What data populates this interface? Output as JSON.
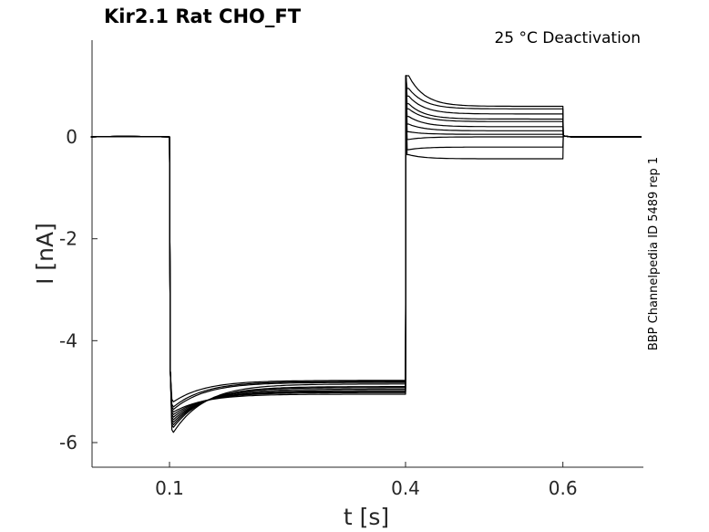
{
  "chart_data": {
    "type": "line",
    "title": "Kir2.1  Rat  CHO_FT",
    "subtitle": "25 °C  Deactivation",
    "xlabel": "t [s]",
    "ylabel": "I [nA]",
    "side_label": "BBP Channelpedia ID 5489 rep 1",
    "xlim": [
      0,
      0.7
    ],
    "ylim": [
      -6.45,
      1.9
    ],
    "xticks": [
      0.1,
      0.4,
      0.6
    ],
    "xtick_labels": [
      "0.1",
      "0.4",
      "0.6"
    ],
    "yticks": [
      0,
      -2,
      -4,
      -6
    ],
    "ytick_labels": [
      "0",
      "-2",
      "-4",
      "-6"
    ],
    "grid": false,
    "legend": "none",
    "protocol_times_s": [
      0.1,
      0.4,
      0.6
    ],
    "series_summary": [
      {
        "peak_step1": -5.8,
        "steady_step1": -4.85,
        "peak_step2": 1.2,
        "steady_step2": 0.6
      },
      {
        "peak_step1": -5.7,
        "steady_step1": -4.9,
        "peak_step2": 0.95,
        "steady_step2": 0.55
      },
      {
        "peak_step1": -5.65,
        "steady_step1": -4.92,
        "peak_step2": 0.8,
        "steady_step2": 0.45
      },
      {
        "peak_step1": -5.6,
        "steady_step1": -4.95,
        "peak_step2": 0.65,
        "steady_step2": 0.35
      },
      {
        "peak_step1": -5.55,
        "steady_step1": -4.98,
        "peak_step2": 0.55,
        "steady_step2": 0.3
      },
      {
        "peak_step1": -5.5,
        "steady_step1": -5.0,
        "peak_step2": 0.4,
        "steady_step2": 0.2
      },
      {
        "peak_step1": -5.45,
        "steady_step1": -5.02,
        "peak_step2": 0.25,
        "steady_step2": 0.12
      },
      {
        "peak_step1": -5.4,
        "steady_step1": -5.05,
        "peak_step2": 0.1,
        "steady_step2": 0.05
      },
      {
        "peak_step1": -5.35,
        "steady_step1": -4.82,
        "peak_step2": -0.05,
        "steady_step2": 0.0
      },
      {
        "peak_step1": -5.3,
        "steady_step1": -4.8,
        "peak_step2": -0.25,
        "steady_step2": -0.2
      },
      {
        "peak_step1": -5.2,
        "steady_step1": -4.78,
        "peak_step2": -0.35,
        "steady_step2": -0.43
      }
    ]
  }
}
